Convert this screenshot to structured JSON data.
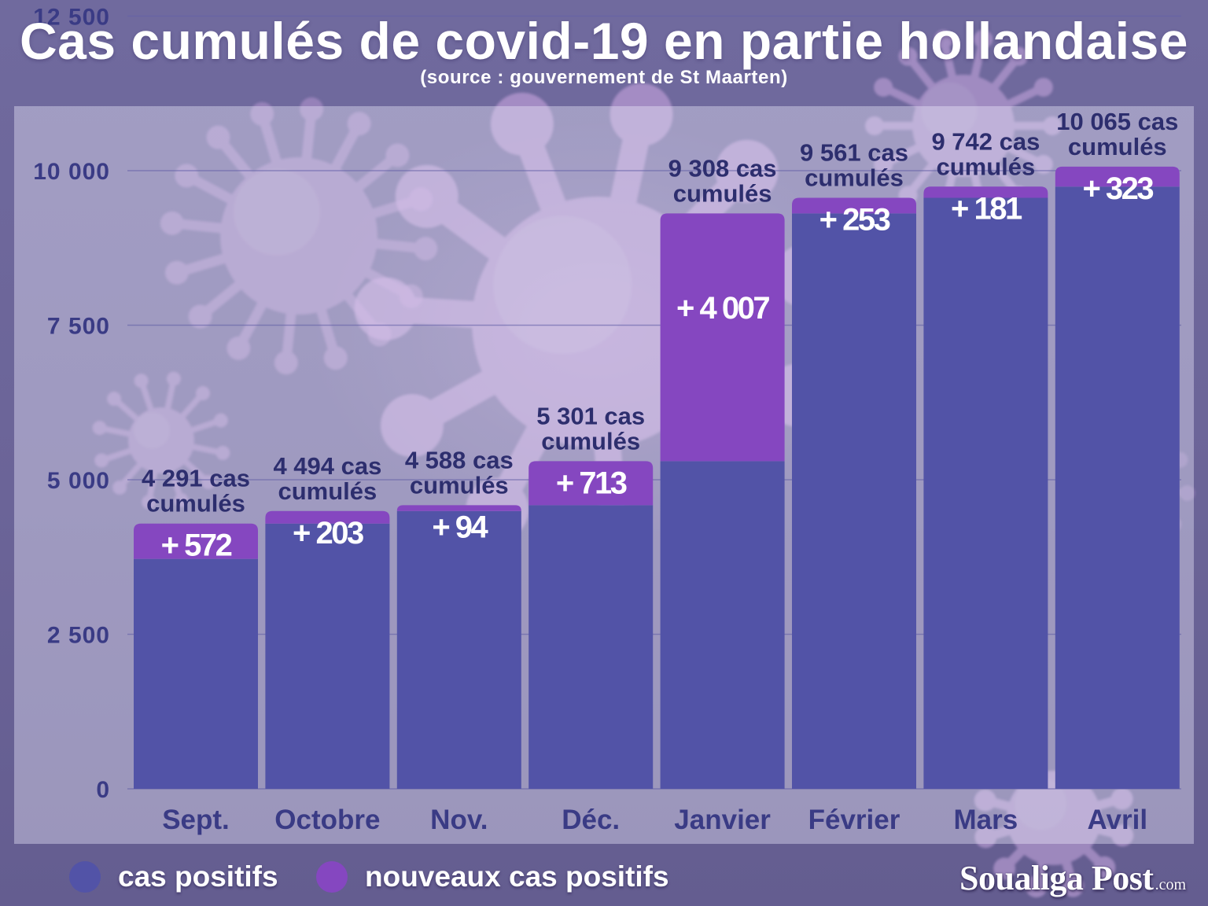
{
  "chart_data": {
    "type": "bar",
    "stacked": true,
    "title": "Cas cumulés de covid-19 en partie hollandaise",
    "subtitle": "(source : gouvernement de St Maarten)",
    "categories": [
      "Sept.",
      "Octobre",
      "Nov.",
      "Déc.",
      "Janvier",
      "Février",
      "Mars",
      "Avril"
    ],
    "series": [
      {
        "name": "cas positifs",
        "color": "#5253a7",
        "values": [
          3719,
          4291,
          4494,
          4588,
          5301,
          9308,
          9561,
          9742
        ]
      },
      {
        "name": "nouveaux cas positifs",
        "color": "#8547c0",
        "values": [
          572,
          203,
          94,
          713,
          4007,
          253,
          181,
          323
        ]
      }
    ],
    "total_labels": [
      [
        "4 291 cas",
        "cumulés"
      ],
      [
        "4 494 cas",
        "cumulés"
      ],
      [
        "4 588 cas",
        "cumulés"
      ],
      [
        "5 301 cas",
        "cumulés"
      ],
      [
        "9 308 cas",
        "cumulés"
      ],
      [
        "9 561 cas",
        "cumulés"
      ],
      [
        "9 742 cas",
        "cumulés"
      ],
      [
        "10 065 cas",
        "cumulés"
      ]
    ],
    "increment_labels": [
      "+ 572",
      "+ 203",
      "+ 94",
      "+ 713",
      "+ 4 007",
      "+ 253",
      "+ 181",
      "+ 323"
    ],
    "ylim": [
      0,
      12500
    ],
    "yticks": [
      0,
      2500,
      5000,
      7500,
      10000,
      12500
    ],
    "ytick_labels": [
      "0",
      "2 500",
      "5 000",
      "7 500",
      "10 000",
      "12 500"
    ],
    "grid": true,
    "legend_position": "bottom-left"
  },
  "logo": {
    "name": "Soualiga Post",
    "suffix": ".com"
  },
  "colors": {
    "page_background": "#6c6599",
    "data_label_text": "#2d2e6e",
    "axis_text": "#3a3b85",
    "gridline": "#6461a8",
    "increment_label_text": "#ffffff"
  }
}
